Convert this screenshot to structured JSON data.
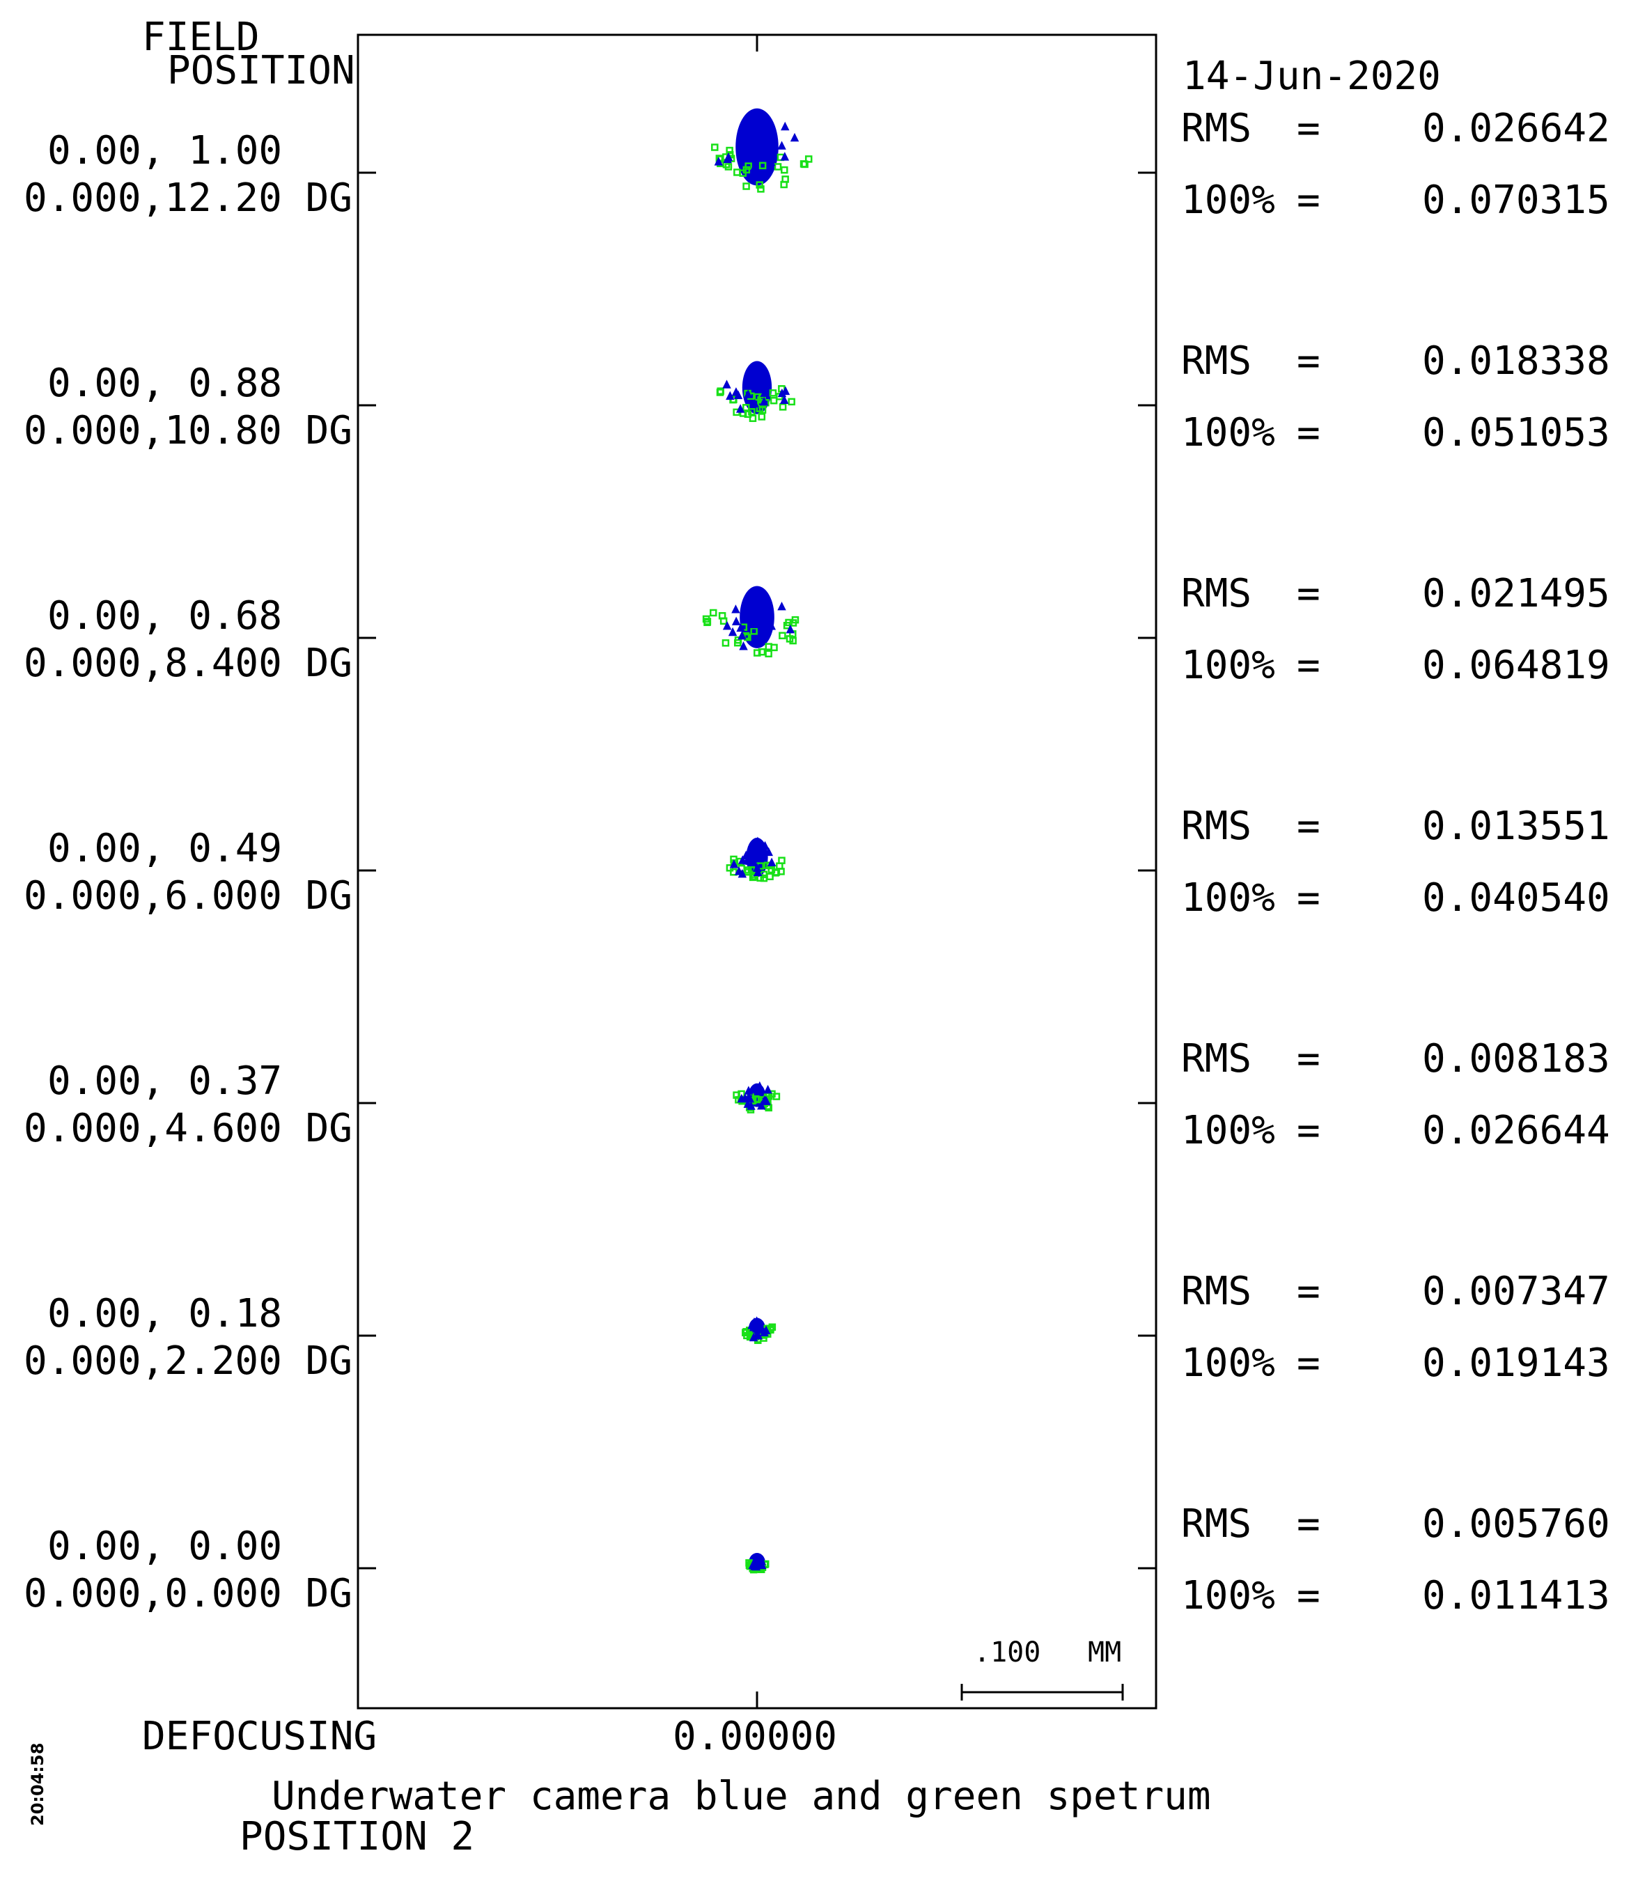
{
  "chart_data": {
    "type": "scatter",
    "kind": "spot diagram",
    "date": "14-Jun-2020",
    "header": [
      "FIELD",
      "POSITION"
    ],
    "defocus_label": "DEFOCUSING",
    "defocus_value": "0.00000",
    "scale_bar": {
      "value": ".100",
      "unit": "MM",
      "length_mm": 0.1
    },
    "title": "Underwater camera blue and green spetrum",
    "subtitle": "POSITION 2",
    "timestamp": "20:04:58",
    "colors": {
      "blue": "#0000d0",
      "green": "#18e018",
      "frame": "#000000"
    },
    "series": [
      {
        "name": "blue",
        "marker": "triangle-star",
        "color": "#0000d0"
      },
      {
        "name": "green",
        "marker": "square",
        "color": "#18e018"
      }
    ],
    "fields": [
      {
        "rel": "0.00, 1.00",
        "angle": "0.000,12.20 DG",
        "rms_label": "RMS",
        "rms": "0.026642",
        "full_label": "100%",
        "full": "0.070315",
        "rms_mm": 0.026642,
        "full_mm": 0.070315
      },
      {
        "rel": "0.00, 0.88",
        "angle": "0.000,10.80 DG",
        "rms_label": "RMS",
        "rms": "0.018338",
        "full_label": "100%",
        "full": "0.051053",
        "rms_mm": 0.018338,
        "full_mm": 0.051053
      },
      {
        "rel": "0.00, 0.68",
        "angle": "0.000,8.400 DG",
        "rms_label": "RMS",
        "rms": "0.021495",
        "full_label": "100%",
        "full": "0.064819",
        "rms_mm": 0.021495,
        "full_mm": 0.064819
      },
      {
        "rel": "0.00, 0.49",
        "angle": "0.000,6.000 DG",
        "rms_label": "RMS",
        "rms": "0.013551",
        "full_label": "100%",
        "full": "0.040540",
        "rms_mm": 0.013551,
        "full_mm": 0.04054
      },
      {
        "rel": "0.00, 0.37",
        "angle": "0.000,4.600 DG",
        "rms_label": "RMS",
        "rms": "0.008183",
        "full_label": "100%",
        "full": "0.026644",
        "rms_mm": 0.008183,
        "full_mm": 0.026644
      },
      {
        "rel": "0.00, 0.18",
        "angle": "0.000,2.200 DG",
        "rms_label": "RMS",
        "rms": "0.007347",
        "full_label": "100%",
        "full": "0.019143",
        "rms_mm": 0.007347,
        "full_mm": 0.019143
      },
      {
        "rel": "0.00, 0.00",
        "angle": "0.000,0.000 DG",
        "rms_label": "RMS",
        "rms": "0.005760",
        "full_label": "100%",
        "full": "0.011413",
        "rms_mm": 0.00576,
        "full_mm": 0.011413
      }
    ]
  }
}
